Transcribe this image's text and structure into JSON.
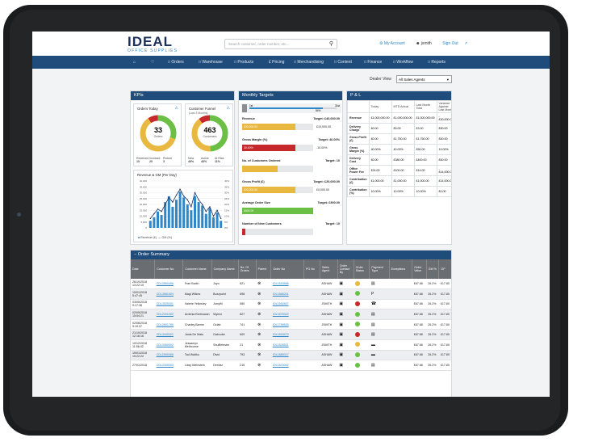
{
  "brand": {
    "name": "IDEAL",
    "tagline": "OFFICE SUPPLIES"
  },
  "search": {
    "placeholder": "Search customer, order number, etc..."
  },
  "header": {
    "account": "My Account",
    "user": "jsmith",
    "signout": "Sign Out"
  },
  "nav": [
    "Orders",
    "Warehouse",
    "Products",
    "Pricing",
    "Merchandising",
    "Content",
    "Finance",
    "Workflow",
    "Reports"
  ],
  "dealer": {
    "label": "Dealer View",
    "selected": "All Sales Agents"
  },
  "kpis": {
    "title": "KPIs",
    "orders_today": {
      "label": "Orders Today",
      "value": "33",
      "sub": "Orders",
      "legend": [
        {
          "k": "Received",
          "v": "10"
        },
        {
          "k": "Invoiced",
          "v": "20"
        },
        {
          "k": "Picked",
          "v": "3"
        }
      ]
    },
    "funnel": {
      "label": "Customer Funnel",
      "sub_label": "(Last 3 Months)",
      "value": "463",
      "sub": "Customers",
      "legend": [
        {
          "k": "New",
          "v": "49%"
        },
        {
          "k": "Active",
          "v": "40%"
        },
        {
          "k": "At Risk",
          "v": "11%"
        }
      ]
    },
    "revenue_label": "Revenue & GM (Per Day)",
    "legend": [
      "Revenue (£)",
      "GM (%)"
    ]
  },
  "chart_data": {
    "type": "bar",
    "title": "Revenue & GM (Per Day)",
    "ylim": [
      0,
      40000
    ],
    "y_ticks": [
      "40,000",
      "35,000",
      "30,000",
      "25,000",
      "20,000",
      "15,000",
      "10,000",
      "5,000",
      "0"
    ],
    "y2_ticks": [
      "40%",
      "35%",
      "30%",
      "25%",
      "20%",
      "15%",
      "10%",
      "5%",
      "0%"
    ],
    "series": [
      {
        "name": "Revenue (£)",
        "values": [
          6000,
          9000,
          14000,
          11000,
          22000,
          27000,
          18000,
          24000,
          31000,
          26000,
          20000,
          15000,
          27000,
          22000,
          19000,
          12000,
          17000,
          9000,
          13000,
          6000
        ]
      },
      {
        "name": "GM (%)",
        "values": [
          8,
          12,
          16,
          14,
          20,
          26,
          22,
          28,
          33,
          27,
          24,
          18,
          30,
          24,
          20,
          14,
          18,
          10,
          15,
          8
        ]
      }
    ]
  },
  "monthly": {
    "title": "Monthly Targets",
    "top": {
      "left": "1st",
      "right": "31st",
      "pct": "84%"
    },
    "items": [
      {
        "label": "Revenue",
        "target": "Target: £40,000.00",
        "value": "£30,000.00",
        "rem": "£10,000.00",
        "fill": 0.75,
        "color": "#e9b840"
      },
      {
        "label": "Gross Margin (%)",
        "target": "Target: 40.00%",
        "value": "30.00%",
        "rem": "-10.00%",
        "fill": 0.75,
        "color": "#c6282b"
      },
      {
        "label": "No. of Customers Ordered",
        "target": "Target: 10",
        "value": "",
        "rem": "",
        "fill": 0.5,
        "color": "#e9b840"
      },
      {
        "label": "Gross Profit (£)",
        "target": "Target: £20,000.00",
        "value": "£20,000.00",
        "rem": "£0,000.00",
        "fill": 0.75,
        "color": "#e9b840"
      },
      {
        "label": "Average Order Size",
        "target": "Target: £500.00",
        "value": "£500.00",
        "rem": "",
        "fill": 1,
        "color": "#6abf44"
      },
      {
        "label": "Number of New Customers",
        "target": "Target: 10",
        "value": "",
        "rem": "",
        "fill": 0.05,
        "color": "#c6282b"
      }
    ]
  },
  "pl": {
    "title": "P & L",
    "headers": [
      "",
      "Today",
      "MTD Actual",
      "Last Month Total",
      "Variance Against Last Month"
    ],
    "rows": [
      [
        "Revenue",
        "£1,000,000.00",
        "£1,000,000.00",
        "£1,000,000.00",
        "-£30,000.00"
      ],
      [
        "Delivery Charge",
        "£0.00",
        "£5.00",
        "£3.00",
        "£50.00"
      ],
      [
        "Gross Profit (£)",
        "£0.00",
        "£1,750.00",
        "£1,750.00",
        "£50.00"
      ],
      [
        "Gross Margin (%)",
        "40.00%",
        "40.00%",
        "£50.00",
        "19.00%"
      ],
      [
        "Delivery Cost",
        "£0.00",
        "£380.00",
        "£400.00",
        "£50.00"
      ],
      [
        "Office Power Fee",
        "£24.00",
        "£100.00",
        "£14.00",
        "-£14,000.00"
      ],
      [
        "Contribution (£)",
        "£1,000.00",
        "£1,000.00",
        "£1,000.00",
        "£14,000.00"
      ],
      [
        "Contribution (%)",
        "10.00%",
        "10.00%",
        "10.00%",
        "£0.00"
      ]
    ]
  },
  "orders": {
    "title": "Order Summary",
    "headers": [
      "Date",
      "Customer No",
      "Customer Name",
      "Company Name",
      "No. Of Orders",
      "Parent",
      "Order No",
      "PO No",
      "Sales Agent",
      "Order Contact By",
      "Order Status",
      "Payment Type",
      "Exceptions",
      "Order Value",
      "GM %",
      "GP"
    ],
    "rows": [
      {
        "date": "26/10/2018 13:22:10",
        "cno": "CDL3560456",
        "name": "Fran Barlin",
        "company": "Joyo",
        "orders": "821",
        "order": "IOL1818568",
        "agent": "ASHAW",
        "contact": "monitor",
        "status": "#e9b840",
        "pay": "doc",
        "value": "£67.68",
        "gm": "26.2%",
        "gp": "£17.80"
      },
      {
        "date": "10/01/2018 5:47:45",
        "cno": "CDL3561004",
        "name": "Magi Wilkes",
        "company": "Buzzpoint",
        "orders": "698",
        "order": "IOL1868201",
        "agent": "ASHAW",
        "contact": "monitor",
        "status": "#6abf44",
        "pay": "paypal",
        "value": "£67.68",
        "gm": "26.2%",
        "gp": "£17.80"
      },
      {
        "date": "03/05/2018 9:17:38",
        "cno": "CDL3025301",
        "name": "Valerie Yellowley",
        "company": "Jumpfli",
        "orders": "580",
        "order": "IOL1692837",
        "agent": "JSMITH",
        "contact": "monitor",
        "status": "#c6282b",
        "pay": "phone",
        "value": "£67.68",
        "gm": "26.2%",
        "gp": "£17.80"
      },
      {
        "date": "02/05/2018 15:54:21",
        "cno": "CDL2201302",
        "name": "Ardenia Bretnowan",
        "company": "Wyenn",
        "orders": "827",
        "order": "IOL1878322",
        "agent": "ASHAW",
        "contact": "monitor",
        "status": "#6abf44",
        "pay": "doc",
        "value": "£67.68",
        "gm": "26.2%",
        "gp": "£17.80"
      },
      {
        "date": "02/06/2018 5:19:37",
        "cno": "CDL2601780",
        "name": "Charley Barme",
        "company": "Ozlab",
        "orders": "741",
        "order": "IOL1789635",
        "agent": "JSMITH",
        "contact": "monitor",
        "status": "#6abf44",
        "pay": "doc",
        "value": "£67.68",
        "gm": "26.2%",
        "gp": "£17.80"
      },
      {
        "date": "21/10/2018 12:16:16",
        "cno": "CDL3440321",
        "name": "Jania De Mato",
        "company": "Gabcube",
        "orders": "609",
        "order": "IOL1818473",
        "agent": "ASHAW",
        "contact": "monitor",
        "status": "#c6282b",
        "pay": "doc",
        "value": "£67.68",
        "gm": "26.2%",
        "gp": "£17.80"
      },
      {
        "date": "10/12/2018 11:56:42",
        "cno": "CDL3460002",
        "name": "Jessamyn Melbourne",
        "company": "Shuffletester",
        "orders": "21",
        "order": "IOL1828501",
        "agent": "JSMITH",
        "contact": "monitor",
        "status": "#e9b840",
        "pay": "card",
        "value": "£67.68",
        "gm": "26.2%",
        "gp": "£17.80"
      },
      {
        "date": "19/01/2018 15:22:22",
        "cno": "CDL2590366",
        "name": "Tad Walthu",
        "company": "Divid",
        "orders": "793",
        "order": "IOL1880017",
        "agent": "ASHAW",
        "contact": "monitor",
        "status": "#6abf44",
        "pay": "card",
        "value": "£67.68",
        "gm": "26.2%",
        "gp": "£17.80"
      },
      {
        "date": "27/01/2018",
        "cno": "CDL3300003",
        "name": "Lissy Weinstein",
        "company": "Demizz",
        "orders": "215",
        "order": "IOL1870002",
        "agent": "ASHAW",
        "contact": "monitor",
        "status": "#6abf44",
        "pay": "doc",
        "value": "£67.68",
        "gm": "26.2%",
        "gp": "£17.80"
      }
    ]
  }
}
